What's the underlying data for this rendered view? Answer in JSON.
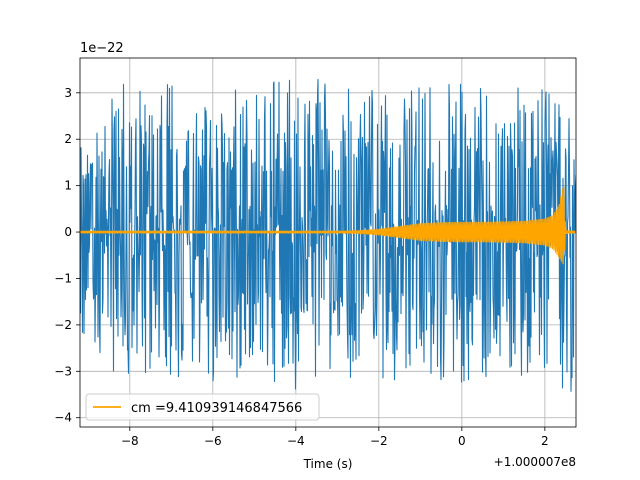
{
  "chart_data": {
    "type": "line",
    "title": "",
    "xlabel": "Time (s)",
    "ylabel": "",
    "x_offset_label": "+1.000007e8",
    "y_scale_label": "1e−22",
    "xlim": [
      -9.2,
      2.75
    ],
    "ylim": [
      -4.2,
      3.75
    ],
    "grid": true,
    "legend_position": "lower left",
    "xticks": [
      -8,
      -6,
      -4,
      -2,
      0,
      2
    ],
    "xtick_labels": [
      "−8",
      "−6",
      "−4",
      "−2",
      "0",
      "2"
    ],
    "yticks": [
      3,
      2,
      1,
      0,
      -1,
      -2,
      -3,
      -4
    ],
    "ytick_labels": [
      "3",
      "2",
      "1",
      "0",
      "−1",
      "−2",
      "−3",
      "−4"
    ],
    "series": [
      {
        "name": "",
        "color": "#1f77b4",
        "description": "noisy strain data",
        "x": [
          -9.2,
          -8.5,
          -8.0,
          -7.0,
          -6.0,
          -5.0,
          -4.0,
          -3.0,
          -2.0,
          -1.0,
          0.0,
          1.0,
          2.0,
          2.75
        ],
        "upper": [
          2.0,
          3.0,
          3.3,
          3.2,
          3.4,
          3.2,
          3.3,
          3.3,
          3.4,
          3.2,
          3.3,
          3.4,
          3.2,
          2.4
        ],
        "lower": [
          -2.4,
          -3.0,
          -3.1,
          -3.2,
          -3.3,
          -3.2,
          -3.4,
          -3.5,
          -3.2,
          -3.2,
          -3.3,
          -3.3,
          -3.2,
          -3.8
        ]
      },
      {
        "name": "cm =9.410939146847566",
        "color": "#ffa500",
        "description": "template waveform",
        "x": [
          -9.2,
          -3.0,
          -2.5,
          -2.0,
          -1.5,
          -1.0,
          -0.5,
          0.0,
          0.5,
          1.0,
          1.5,
          2.0,
          2.2,
          2.35,
          2.45,
          2.5,
          2.75
        ],
        "upper": [
          0.02,
          0.02,
          0.03,
          0.06,
          0.12,
          0.18,
          0.2,
          0.21,
          0.21,
          0.22,
          0.23,
          0.28,
          0.36,
          0.6,
          1.08,
          0.03,
          0.02
        ],
        "lower": [
          -0.02,
          -0.02,
          -0.03,
          -0.06,
          -0.12,
          -0.18,
          -0.2,
          -0.21,
          -0.21,
          -0.22,
          -0.23,
          -0.28,
          -0.36,
          -0.55,
          -0.7,
          -0.03,
          -0.02
        ]
      }
    ]
  }
}
